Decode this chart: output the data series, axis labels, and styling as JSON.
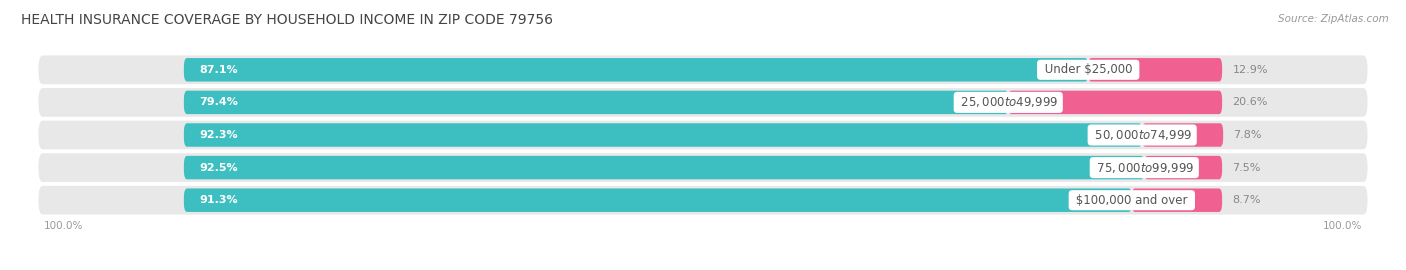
{
  "title": "HEALTH INSURANCE COVERAGE BY HOUSEHOLD INCOME IN ZIP CODE 79756",
  "source": "Source: ZipAtlas.com",
  "categories": [
    "Under $25,000",
    "$25,000 to $49,999",
    "$50,000 to $74,999",
    "$75,000 to $99,999",
    "$100,000 and over"
  ],
  "with_coverage": [
    87.1,
    79.4,
    92.3,
    92.5,
    91.3
  ],
  "without_coverage": [
    12.9,
    20.6,
    7.8,
    7.5,
    8.7
  ],
  "teal_color": "#3DBEC0",
  "teal_light_color": "#7DD6D8",
  "pink_color": "#F06090",
  "pink_light_color": "#F4A8C0",
  "row_bg": "#eeeeee",
  "fig_bg": "#ffffff",
  "label_fontsize": 8.5,
  "title_fontsize": 10.0,
  "pct_fontsize": 8.0
}
